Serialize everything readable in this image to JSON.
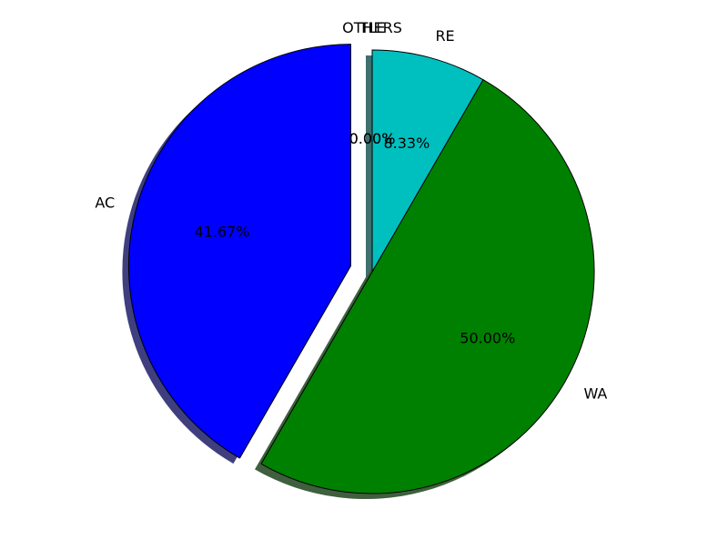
{
  "chart_data": {
    "type": "pie",
    "title": "",
    "start_angle_deg": 90,
    "direction": "counterclockwise",
    "shadow": true,
    "slices": [
      {
        "label": "AC",
        "value": 41.67,
        "pct_label": "41.67%",
        "color": "#0000ff",
        "explode": 0.1
      },
      {
        "label": "WA",
        "value": 50.0,
        "pct_label": "50.00%",
        "color": "#008000",
        "explode": 0
      },
      {
        "label": "RE",
        "value": 8.33,
        "pct_label": "8.33%",
        "color": "#00bfbf",
        "explode": 0
      },
      {
        "label": "OTHERS",
        "value": 0.0,
        "pct_label": "0.00%",
        "color": "#ff0000",
        "explode": 0
      },
      {
        "label": "TLE",
        "value": 0.0,
        "pct_label": "0.00%",
        "color": "#bf00bf",
        "explode": 0
      }
    ],
    "shadow_color": "#000000"
  }
}
